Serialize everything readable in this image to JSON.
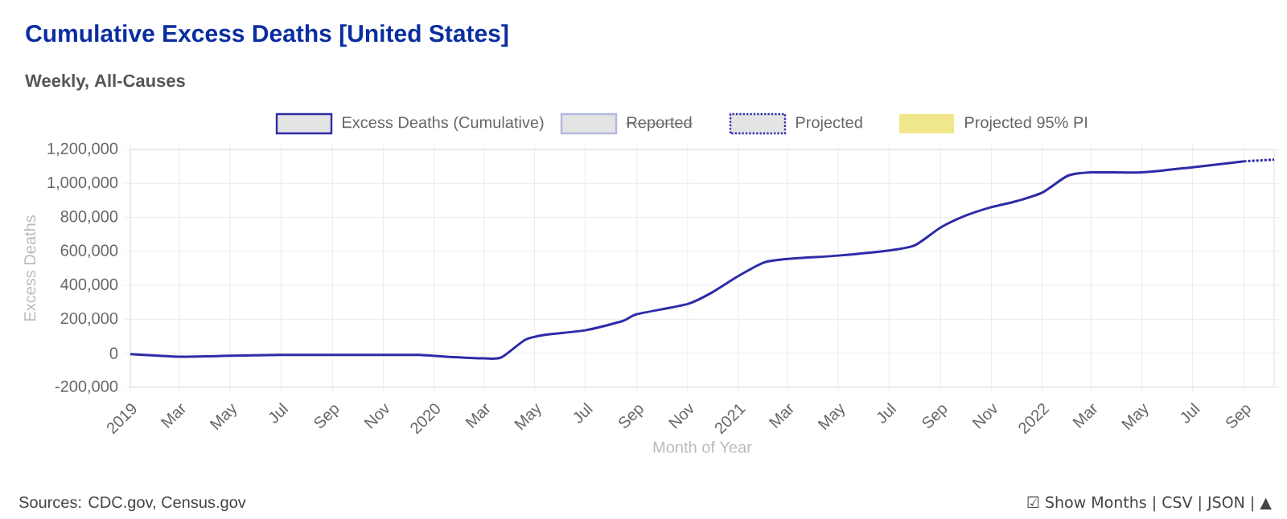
{
  "chart_data": {
    "type": "line",
    "title": "Cumulative Excess Deaths [United States]",
    "subtitle": "Weekly, All-Causes",
    "xlabel": "Month of Year",
    "ylabel": "Excess Deaths",
    "annotations": [
      "Sources: CDC.gov, Census.gov",
      "☑ Show Months | CSV | JSON | ▲"
    ],
    "xlim": [
      "2019-01-01",
      "2022-10-07"
    ],
    "ylim": [
      -200000,
      1200000
    ],
    "xticks": [
      {
        "value": "2019-01-01",
        "label": "2019"
      },
      {
        "value": "2019-03-01",
        "label": "Mar"
      },
      {
        "value": "2019-05-01",
        "label": "May"
      },
      {
        "value": "2019-07-01",
        "label": "Jul"
      },
      {
        "value": "2019-09-01",
        "label": "Sep"
      },
      {
        "value": "2019-11-01",
        "label": "Nov"
      },
      {
        "value": "2020-01-01",
        "label": "2020"
      },
      {
        "value": "2020-03-01",
        "label": "Mar"
      },
      {
        "value": "2020-05-01",
        "label": "May"
      },
      {
        "value": "2020-07-01",
        "label": "Jul"
      },
      {
        "value": "2020-09-01",
        "label": "Sep"
      },
      {
        "value": "2020-11-01",
        "label": "Nov"
      },
      {
        "value": "2021-01-01",
        "label": "2021"
      },
      {
        "value": "2021-03-01",
        "label": "Mar"
      },
      {
        "value": "2021-05-01",
        "label": "May"
      },
      {
        "value": "2021-07-01",
        "label": "Jul"
      },
      {
        "value": "2021-09-01",
        "label": "Sep"
      },
      {
        "value": "2021-11-01",
        "label": "Nov"
      },
      {
        "value": "2022-01-01",
        "label": "2022"
      },
      {
        "value": "2022-03-01",
        "label": "Mar"
      },
      {
        "value": "2022-05-01",
        "label": "May"
      },
      {
        "value": "2022-07-01",
        "label": "Jul"
      },
      {
        "value": "2022-09-01",
        "label": "Sep"
      }
    ],
    "yticks": [
      {
        "value": -200000,
        "label": "-200,000"
      },
      {
        "value": 0,
        "label": "0"
      },
      {
        "value": 200000,
        "label": "200,000"
      },
      {
        "value": 400000,
        "label": "400,000"
      },
      {
        "value": 600000,
        "label": "600,000"
      },
      {
        "value": 800000,
        "label": "800,000"
      },
      {
        "value": 1000000,
        "label": "1,000,000"
      },
      {
        "value": 1200000,
        "label": "1,200,000"
      }
    ],
    "grid": true,
    "legend": "top",
    "marker": "none",
    "series": [
      {
        "name": "Excess Deaths (Cumulative)",
        "color": "#2c2ca8",
        "line_style": "solid",
        "x": [
          "2019-01-01",
          "2019-03-01",
          "2019-05-01",
          "2019-07-01",
          "2019-09-01",
          "2019-11-01",
          "2019-12-15",
          "2020-01-15",
          "2020-03-01",
          "2020-03-22",
          "2020-04-20",
          "2020-05-15",
          "2020-07-01",
          "2020-08-15",
          "2020-09-01",
          "2020-11-01",
          "2020-12-01",
          "2021-01-01",
          "2021-02-01",
          "2021-03-01",
          "2021-05-01",
          "2021-07-01",
          "2021-08-01",
          "2021-09-01",
          "2021-10-01",
          "2021-11-01",
          "2021-12-01",
          "2022-01-01",
          "2022-02-01",
          "2022-03-01",
          "2022-05-01",
          "2022-07-01",
          "2022-09-01"
        ],
        "values": [
          -5000,
          -20000,
          -15000,
          -10000,
          -10000,
          -10000,
          -10000,
          -20000,
          -30000,
          -25000,
          80000,
          110000,
          135000,
          190000,
          230000,
          290000,
          360000,
          455000,
          535000,
          555000,
          575000,
          605000,
          635000,
          740000,
          810000,
          860000,
          895000,
          945000,
          1045000,
          1065000,
          1065000,
          1095000,
          1130000
        ]
      },
      {
        "name": "Reported",
        "color": "#b4b8dc",
        "line_style": "solid"
      },
      {
        "name": "Projected",
        "color": "#2c2ca8",
        "line_style": "dotted",
        "x": [
          "2022-09-01",
          "2022-10-07"
        ],
        "values": [
          1130000,
          1140000
        ]
      },
      {
        "name": "Projected 95% PI",
        "type": "area",
        "color": "#f0e68c"
      }
    ]
  }
}
